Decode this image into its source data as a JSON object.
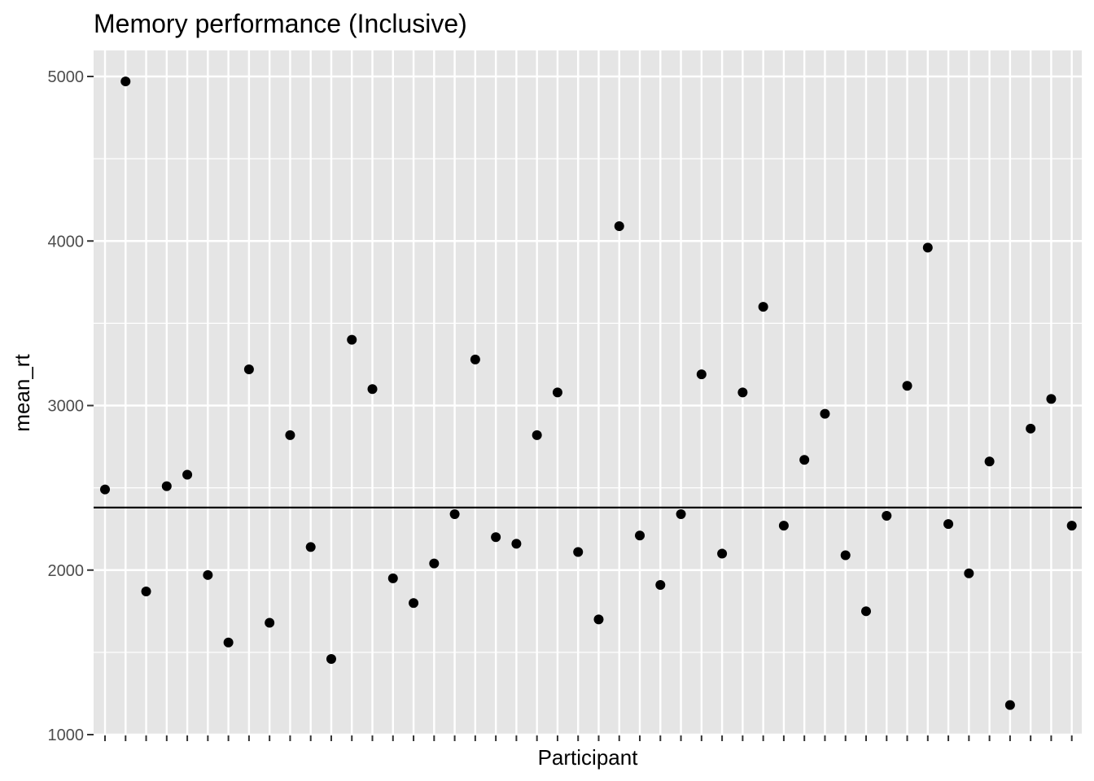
{
  "chart_data": {
    "type": "scatter",
    "title": "Memory performance (Inclusive)",
    "xlabel": "Participant",
    "ylabel": "mean_rt",
    "ylim": [
      1000,
      5000
    ],
    "y_ticks": [
      1000,
      2000,
      3000,
      4000,
      5000
    ],
    "y_tick_labels": [
      "1000",
      "2000",
      "3000",
      "4000",
      "5000"
    ],
    "x_tick_labels_shown": false,
    "grid": true,
    "reference_line": {
      "orientation": "horizontal",
      "y": 2380
    },
    "colors": {
      "panel": "#e5e5e5",
      "grid": "#ffffff",
      "point": "#000000",
      "line": "#000000",
      "tick_text": "#4d4d4d"
    },
    "x": [
      1,
      2,
      3,
      4,
      5,
      6,
      7,
      8,
      9,
      10,
      11,
      12,
      13,
      14,
      15,
      16,
      17,
      18,
      19,
      20,
      21,
      22,
      23,
      24,
      25,
      26,
      27,
      28,
      29,
      30,
      31,
      32,
      33,
      34,
      35,
      36,
      37,
      38,
      39,
      40,
      41,
      42,
      43,
      44,
      45,
      46,
      47,
      48
    ],
    "values": [
      2490,
      4970,
      1870,
      2510,
      2580,
      1970,
      1560,
      3220,
      1680,
      2820,
      2140,
      1460,
      3400,
      3100,
      1950,
      1800,
      2040,
      2340,
      3280,
      2200,
      2160,
      2820,
      3080,
      2110,
      1700,
      4090,
      2210,
      1910,
      2340,
      3190,
      2100,
      3080,
      3600,
      2270,
      2670,
      2950,
      2090,
      1750,
      2330,
      3120,
      3960,
      2280,
      1980,
      2660,
      1180,
      2860,
      3040,
      2270
    ]
  }
}
